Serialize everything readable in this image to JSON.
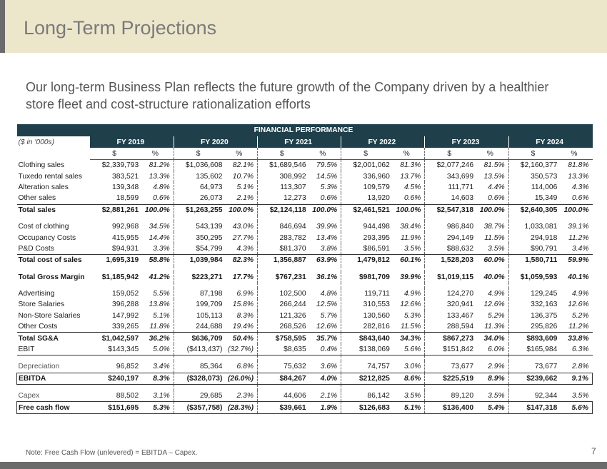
{
  "title": "Long-Term Projections",
  "subtitle": "Our long-term Business Plan reflects the future growth of the Company driven by a healthier store fleet and cost-structure rationalization efforts",
  "table": {
    "banner": "FINANCIAL PERFORMANCE",
    "units_label": "($ in '000s)",
    "years": [
      "FY 2019",
      "FY 2020",
      "FY 2021",
      "FY 2022",
      "FY 2023",
      "FY 2024"
    ],
    "subheaders": [
      "$",
      "%"
    ],
    "sections": [
      {
        "rows": [
          {
            "label": "Clothing sales",
            "values": [
              [
                "$2,339,793",
                "81.2%"
              ],
              [
                "$1,036,608",
                "82.1%"
              ],
              [
                "$1,689,546",
                "79.5%"
              ],
              [
                "$2,001,062",
                "81.3%"
              ],
              [
                "$2,077,246",
                "81.5%"
              ],
              [
                "$2,160,377",
                "81.8%"
              ]
            ]
          },
          {
            "label": "Tuxedo rental sales",
            "values": [
              [
                "383,521",
                "13.3%"
              ],
              [
                "135,602",
                "10.7%"
              ],
              [
                "308,992",
                "14.5%"
              ],
              [
                "336,960",
                "13.7%"
              ],
              [
                "343,699",
                "13.5%"
              ],
              [
                "350,573",
                "13.3%"
              ]
            ]
          },
          {
            "label": "Alteration sales",
            "values": [
              [
                "139,348",
                "4.8%"
              ],
              [
                "64,973",
                "5.1%"
              ],
              [
                "113,307",
                "5.3%"
              ],
              [
                "109,579",
                "4.5%"
              ],
              [
                "111,771",
                "4.4%"
              ],
              [
                "114,006",
                "4.3%"
              ]
            ]
          },
          {
            "label": "Other sales",
            "values": [
              [
                "18,599",
                "0.6%"
              ],
              [
                "26,073",
                "2.1%"
              ],
              [
                "12,273",
                "0.6%"
              ],
              [
                "13,920",
                "0.6%"
              ],
              [
                "14,603",
                "0.6%"
              ],
              [
                "15,349",
                "0.6%"
              ]
            ]
          },
          {
            "label": "Total sales",
            "style": "total",
            "values": [
              [
                "$2,881,261",
                "100.0%"
              ],
              [
                "$1,263,255",
                "100.0%"
              ],
              [
                "$2,124,118",
                "100.0%"
              ],
              [
                "$2,461,521",
                "100.0%"
              ],
              [
                "$2,547,318",
                "100.0%"
              ],
              [
                "$2,640,305",
                "100.0%"
              ]
            ]
          }
        ]
      },
      {
        "rows": [
          {
            "label": "Cost of clothing",
            "values": [
              [
                "992,968",
                "34.5%"
              ],
              [
                "543,139",
                "43.0%"
              ],
              [
                "846,694",
                "39.9%"
              ],
              [
                "944,498",
                "38.4%"
              ],
              [
                "986,840",
                "38.7%"
              ],
              [
                "1,033,081",
                "39.1%"
              ]
            ]
          },
          {
            "label": "Occupancy Costs",
            "values": [
              [
                "415,955",
                "14.4%"
              ],
              [
                "350,295",
                "27.7%"
              ],
              [
                "283,782",
                "13.4%"
              ],
              [
                "293,395",
                "11.9%"
              ],
              [
                "294,149",
                "11.5%"
              ],
              [
                "294,918",
                "11.2%"
              ]
            ]
          },
          {
            "label": "P&D Costs",
            "values": [
              [
                "$94,931",
                "3.3%"
              ],
              [
                "$54,799",
                "4.3%"
              ],
              [
                "$81,370",
                "3.8%"
              ],
              [
                "$86,591",
                "3.5%"
              ],
              [
                "$88,632",
                "3.5%"
              ],
              [
                "$90,791",
                "3.4%"
              ]
            ]
          },
          {
            "label": "Total cost of sales",
            "style": "total",
            "values": [
              [
                "1,695,319",
                "58.8%"
              ],
              [
                "1,039,984",
                "82.3%"
              ],
              [
                "1,356,887",
                "63.9%"
              ],
              [
                "1,479,812",
                "60.1%"
              ],
              [
                "1,528,203",
                "60.0%"
              ],
              [
                "1,580,711",
                "59.9%"
              ]
            ]
          }
        ]
      },
      {
        "rows": [
          {
            "label": "Total Gross Margin",
            "style": "bold",
            "values": [
              [
                "$1,185,942",
                "41.2%"
              ],
              [
                "$223,271",
                "17.7%"
              ],
              [
                "$767,231",
                "36.1%"
              ],
              [
                "$981,709",
                "39.9%"
              ],
              [
                "$1,019,115",
                "40.0%"
              ],
              [
                "$1,059,593",
                "40.1%"
              ]
            ]
          }
        ]
      },
      {
        "rows": [
          {
            "label": "Advertising",
            "values": [
              [
                "159,052",
                "5.5%"
              ],
              [
                "87,198",
                "6.9%"
              ],
              [
                "102,500",
                "4.8%"
              ],
              [
                "119,711",
                "4.9%"
              ],
              [
                "124,270",
                "4.9%"
              ],
              [
                "129,245",
                "4.9%"
              ]
            ]
          },
          {
            "label": "Store Salaries",
            "values": [
              [
                "396,288",
                "13.8%"
              ],
              [
                "199,709",
                "15.8%"
              ],
              [
                "266,244",
                "12.5%"
              ],
              [
                "310,553",
                "12.6%"
              ],
              [
                "320,941",
                "12.6%"
              ],
              [
                "332,163",
                "12.6%"
              ]
            ]
          },
          {
            "label": "Non-Store Salaries",
            "values": [
              [
                "147,992",
                "5.1%"
              ],
              [
                "105,113",
                "8.3%"
              ],
              [
                "121,326",
                "5.7%"
              ],
              [
                "130,560",
                "5.3%"
              ],
              [
                "133,467",
                "5.2%"
              ],
              [
                "136,375",
                "5.2%"
              ]
            ]
          },
          {
            "label": "Other Costs",
            "values": [
              [
                "339,265",
                "11.8%"
              ],
              [
                "244,688",
                "19.4%"
              ],
              [
                "268,526",
                "12.6%"
              ],
              [
                "282,816",
                "11.5%"
              ],
              [
                "288,594",
                "11.3%"
              ],
              [
                "295,826",
                "11.2%"
              ]
            ]
          },
          {
            "label": "Total SG&A",
            "style": "total",
            "values": [
              [
                "$1,042,597",
                "36.2%"
              ],
              [
                "$636,709",
                "50.4%"
              ],
              [
                "$758,595",
                "35.7%"
              ],
              [
                "$843,640",
                "34.3%"
              ],
              [
                "$867,273",
                "34.0%"
              ],
              [
                "$893,609",
                "33.8%"
              ]
            ]
          },
          {
            "label": "EBIT",
            "style": "ebit",
            "values": [
              [
                "$143,345",
                "5.0%"
              ],
              [
                "($413,437)",
                "(32.7%)"
              ],
              [
                "$8,635",
                "0.4%"
              ],
              [
                "$138,069",
                "5.6%"
              ],
              [
                "$151,842",
                "6.0%"
              ],
              [
                "$165,984",
                "6.3%"
              ]
            ]
          }
        ]
      },
      {
        "rows": [
          {
            "label": "Depreciation",
            "style": "dep",
            "values": [
              [
                "96,852",
                "3.4%"
              ],
              [
                "85,364",
                "6.8%"
              ],
              [
                "75,632",
                "3.6%"
              ],
              [
                "74,757",
                "3.0%"
              ],
              [
                "73,677",
                "2.9%"
              ],
              [
                "73,677",
                "2.8%"
              ]
            ]
          },
          {
            "label": "EBITDA",
            "style": "boxed",
            "values": [
              [
                "$240,197",
                "8.3%"
              ],
              [
                "($328,073)",
                "(26.0%)"
              ],
              [
                "$84,267",
                "4.0%"
              ],
              [
                "$212,825",
                "8.6%"
              ],
              [
                "$225,519",
                "8.9%"
              ],
              [
                "$239,662",
                "9.1%"
              ]
            ]
          }
        ]
      },
      {
        "rows": [
          {
            "label": "Capex",
            "style": "dep",
            "values": [
              [
                "88,502",
                "3.1%"
              ],
              [
                "29,685",
                "2.3%"
              ],
              [
                "44,606",
                "2.1%"
              ],
              [
                "86,142",
                "3.5%"
              ],
              [
                "89,120",
                "3.5%"
              ],
              [
                "92,344",
                "3.5%"
              ]
            ]
          },
          {
            "label": "Free cash flow",
            "style": "boxed",
            "values": [
              [
                "$151,695",
                "5.3%"
              ],
              [
                "($357,758)",
                "(28.3%)"
              ],
              [
                "$39,661",
                "1.9%"
              ],
              [
                "$126,683",
                "5.1%"
              ],
              [
                "$136,400",
                "5.4%"
              ],
              [
                "$147,318",
                "5.6%"
              ]
            ]
          }
        ]
      }
    ]
  },
  "note": "Note: Free Cash Flow (unlevered) = EBITDA – Capex.",
  "page_number": "7"
}
